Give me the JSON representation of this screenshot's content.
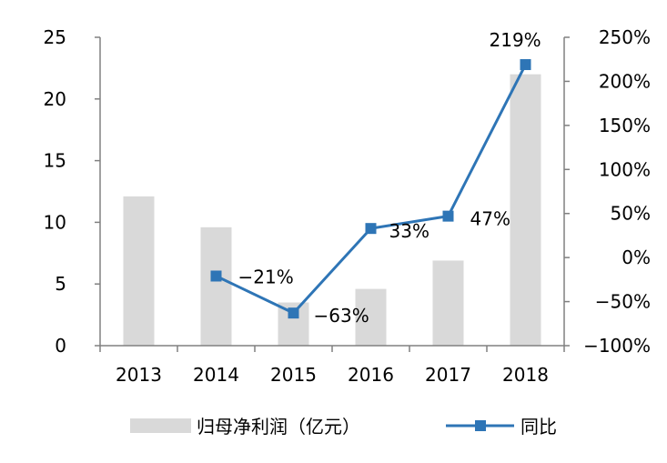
{
  "chart_data": {
    "type": "bar+line",
    "categories": [
      "2013",
      "2014",
      "2015",
      "2016",
      "2017",
      "2018"
    ],
    "series": [
      {
        "name": "归母净利润（亿元）",
        "type": "bar",
        "axis": "left",
        "color": "#d9d9d9",
        "values": [
          12.1,
          9.6,
          3.5,
          4.6,
          6.9,
          22.0
        ]
      },
      {
        "name": "同比",
        "type": "line",
        "axis": "right",
        "color": "#2e75b6",
        "values": [
          null,
          -21,
          -63,
          33,
          47,
          219
        ],
        "labels": [
          null,
          "-21%",
          "-63%",
          "33%",
          "47%",
          "219%"
        ]
      }
    ],
    "left_axis": {
      "ylim": [
        0,
        25
      ],
      "ticks": [
        "0",
        "5",
        "10",
        "15",
        "20",
        "25"
      ]
    },
    "right_axis": {
      "ylim": [
        -100,
        250
      ],
      "ticks": [
        "-100%",
        "-50%",
        "0%",
        "50%",
        "100%",
        "150%",
        "200%",
        "250%"
      ]
    },
    "grid": false,
    "legend": "bottom"
  }
}
